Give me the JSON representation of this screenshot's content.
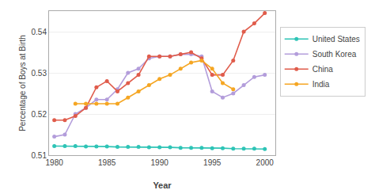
{
  "chart_data": {
    "type": "line",
    "x_label": "Year",
    "y_label": "Percentage of Boys at Birth",
    "x": [
      1980,
      1981,
      1982,
      1983,
      1984,
      1985,
      1986,
      1987,
      1988,
      1989,
      1990,
      1991,
      1992,
      1993,
      1994,
      1995,
      1996,
      1997,
      1998,
      1999,
      2000
    ],
    "series": [
      {
        "name": "United States",
        "color": "#2ec4b6",
        "values": [
          0.5122,
          0.5122,
          0.5122,
          0.5121,
          0.5121,
          0.5121,
          0.512,
          0.512,
          0.512,
          0.5119,
          0.5119,
          0.5119,
          0.5118,
          0.5118,
          0.5118,
          0.5117,
          0.5117,
          0.5116,
          0.5116,
          0.5116,
          0.5115
        ]
      },
      {
        "name": "South Korea",
        "color": "#b39ddb",
        "values": [
          0.5145,
          0.515,
          0.52,
          0.5215,
          0.5235,
          0.5235,
          0.526,
          0.53,
          0.531,
          0.5335,
          0.534,
          0.534,
          0.5345,
          0.5345,
          0.534,
          0.5255,
          0.524,
          0.525,
          0.527,
          0.529,
          0.5295
        ]
      },
      {
        "name": "China",
        "color": "#e05c4b",
        "values": [
          0.5185,
          0.5185,
          0.5195,
          0.5215,
          0.5265,
          0.528,
          0.5255,
          0.5275,
          0.5295,
          0.534,
          0.534,
          0.534,
          0.5345,
          0.535,
          0.5335,
          0.5295,
          0.5295,
          0.533,
          0.54,
          0.542,
          0.5445
        ]
      },
      {
        "name": "India",
        "color": "#f5a623",
        "values": [
          null,
          null,
          0.5225,
          0.5225,
          0.5225,
          0.5225,
          0.5225,
          0.524,
          0.5255,
          0.527,
          0.5285,
          0.5295,
          0.531,
          0.5325,
          0.533,
          0.531,
          0.5275,
          0.526,
          null,
          null,
          null
        ]
      }
    ],
    "xlim": [
      1979.5,
      2001.0
    ],
    "xticks": [
      1980,
      1985,
      1990,
      1995,
      2000
    ],
    "ylim": [
      0.51,
      0.545
    ],
    "yticks": [
      0.51,
      0.52,
      0.53,
      0.54
    ],
    "grid": "y",
    "legend": "right",
    "marker": "circle"
  }
}
